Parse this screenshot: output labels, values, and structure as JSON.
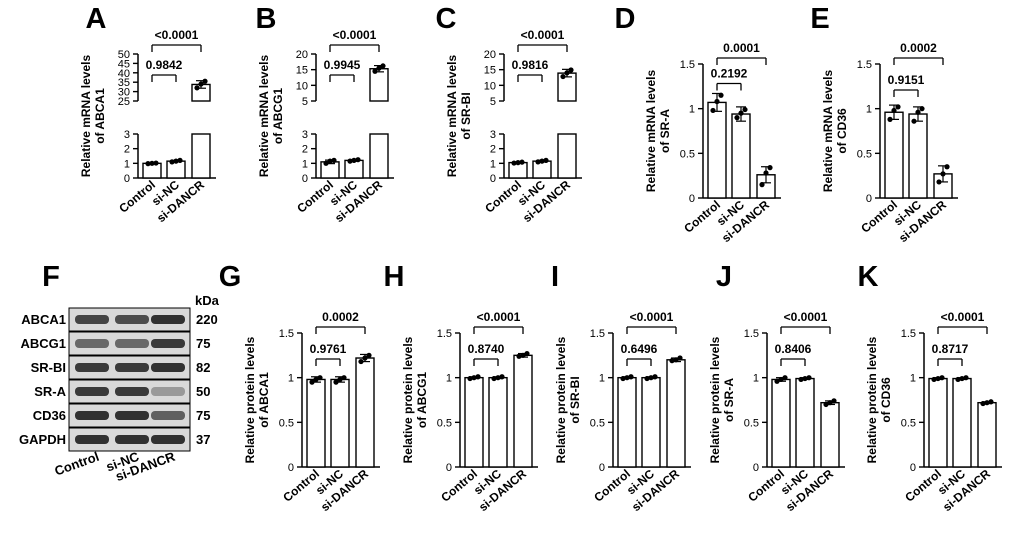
{
  "chart_data": [
    {
      "type": "bar",
      "panel": "A",
      "ylabel": [
        "Relative mRNA levels",
        "of ABCA1"
      ],
      "categories": [
        "Control",
        "si-NC",
        "si-DANCR"
      ],
      "values": [
        1.0,
        1.15,
        33.8
      ],
      "errors": [
        0.03,
        0.05,
        2.0
      ],
      "points": [
        [
          0.98,
          1.0,
          1.02
        ],
        [
          1.1,
          1.15,
          1.2
        ],
        [
          32.0,
          34.0,
          35.5
        ]
      ],
      "broken_axis": true,
      "ylower_ticks": [
        0,
        1,
        2,
        3
      ],
      "yupper_ticks": [
        25,
        30,
        35,
        40,
        45,
        50
      ],
      "comparisons": [
        {
          "from": 0,
          "to": 1,
          "label": "0.9842"
        },
        {
          "from": 0,
          "to": 2,
          "label": "<0.0001"
        }
      ]
    },
    {
      "type": "bar",
      "panel": "B",
      "ylabel": [
        "Relative mRNA levels",
        "of ABCG1"
      ],
      "categories": [
        "Control",
        "si-NC",
        "si-DANCR"
      ],
      "values": [
        1.1,
        1.2,
        15.3
      ],
      "errors": [
        0.12,
        0.06,
        1.0
      ],
      "points": [
        [
          1.0,
          1.15,
          1.2
        ],
        [
          1.15,
          1.2,
          1.25
        ],
        [
          14.5,
          15.5,
          16.2
        ]
      ],
      "broken_axis": true,
      "ylower_ticks": [
        0,
        1,
        2,
        3
      ],
      "yupper_ticks": [
        5,
        10,
        15,
        20
      ],
      "comparisons": [
        {
          "from": 0,
          "to": 1,
          "label": "0.9945"
        },
        {
          "from": 0,
          "to": 2,
          "label": "<0.0001"
        }
      ]
    },
    {
      "type": "bar",
      "panel": "C",
      "ylabel": [
        "Relative mRNA levels",
        "of SR-BI"
      ],
      "categories": [
        "Control",
        "si-NC",
        "si-DANCR"
      ],
      "values": [
        1.05,
        1.15,
        13.9
      ],
      "errors": [
        0.04,
        0.06,
        1.2
      ],
      "points": [
        [
          1.02,
          1.05,
          1.08
        ],
        [
          1.1,
          1.15,
          1.2
        ],
        [
          12.8,
          14.0,
          14.9
        ]
      ],
      "broken_axis": true,
      "ylower_ticks": [
        0,
        1,
        2,
        3
      ],
      "yupper_ticks": [
        5,
        10,
        15,
        20
      ],
      "comparisons": [
        {
          "from": 0,
          "to": 1,
          "label": "0.9816"
        },
        {
          "from": 0,
          "to": 2,
          "label": "<0.0001"
        }
      ]
    },
    {
      "type": "bar",
      "panel": "D",
      "ylabel": [
        "Relative mRNA levels",
        "of SR-A"
      ],
      "categories": [
        "Control",
        "si-NC",
        "si-DANCR"
      ],
      "values": [
        1.07,
        0.94,
        0.26
      ],
      "errors": [
        0.1,
        0.08,
        0.09
      ],
      "points": [
        [
          0.98,
          1.08,
          1.15
        ],
        [
          0.9,
          0.95,
          0.99
        ],
        [
          0.15,
          0.28,
          0.34
        ]
      ],
      "ylim": [
        0,
        1.5
      ],
      "yticks": [
        0.0,
        0.5,
        1.0,
        1.5
      ],
      "comparisons": [
        {
          "from": 0,
          "to": 1,
          "label": "0.2192"
        },
        {
          "from": 0,
          "to": 2,
          "label": "0.0001"
        }
      ]
    },
    {
      "type": "bar",
      "panel": "E",
      "ylabel": [
        "Relative mRNA levels",
        "of CD36"
      ],
      "categories": [
        "Control",
        "si-NC",
        "si-DANCR"
      ],
      "values": [
        0.96,
        0.94,
        0.27
      ],
      "errors": [
        0.08,
        0.08,
        0.09
      ],
      "points": [
        [
          0.88,
          0.98,
          1.02
        ],
        [
          0.86,
          0.96,
          1.0
        ],
        [
          0.18,
          0.27,
          0.35
        ]
      ],
      "ylim": [
        0,
        1.5
      ],
      "yticks": [
        0.0,
        0.5,
        1.0,
        1.5
      ],
      "comparisons": [
        {
          "from": 0,
          "to": 1,
          "label": "0.9151"
        },
        {
          "from": 0,
          "to": 2,
          "label": "0.0002"
        }
      ]
    },
    {
      "type": "bar",
      "panel": "G",
      "ylabel": [
        "Relative protein levels",
        "of ABCA1"
      ],
      "categories": [
        "Control",
        "si-NC",
        "si-DANCR"
      ],
      "values": [
        0.98,
        0.98,
        1.22
      ],
      "errors": [
        0.03,
        0.03,
        0.04
      ],
      "points": [
        [
          0.95,
          0.98,
          1.0
        ],
        [
          0.95,
          0.98,
          1.0
        ],
        [
          1.18,
          1.22,
          1.25
        ]
      ],
      "ylim": [
        0,
        1.5
      ],
      "yticks": [
        0.0,
        0.5,
        1.0,
        1.5
      ],
      "comparisons": [
        {
          "from": 0,
          "to": 1,
          "label": "0.9761"
        },
        {
          "from": 0,
          "to": 2,
          "label": "0.0002"
        }
      ]
    },
    {
      "type": "bar",
      "panel": "H",
      "ylabel": [
        "Relative protein levels",
        "of ABCG1"
      ],
      "categories": [
        "Control",
        "si-NC",
        "si-DANCR"
      ],
      "values": [
        1.0,
        1.0,
        1.25
      ],
      "errors": [
        0.01,
        0.01,
        0.02
      ],
      "points": [
        [
          0.99,
          1.0,
          1.01
        ],
        [
          0.99,
          1.0,
          1.01
        ],
        [
          1.24,
          1.25,
          1.27
        ]
      ],
      "ylim": [
        0,
        1.5
      ],
      "yticks": [
        0.0,
        0.5,
        1.0,
        1.5
      ],
      "comparisons": [
        {
          "from": 0,
          "to": 1,
          "label": "0.8740"
        },
        {
          "from": 0,
          "to": 2,
          "label": "<0.0001"
        }
      ]
    },
    {
      "type": "bar",
      "panel": "I",
      "ylabel": [
        "Relative protein levels",
        "of SR-BI"
      ],
      "categories": [
        "Control",
        "si-NC",
        "si-DANCR"
      ],
      "values": [
        1.0,
        1.0,
        1.2
      ],
      "errors": [
        0.01,
        0.01,
        0.02
      ],
      "points": [
        [
          0.99,
          1.0,
          1.01
        ],
        [
          0.99,
          1.0,
          1.01
        ],
        [
          1.19,
          1.2,
          1.22
        ]
      ],
      "ylim": [
        0,
        1.5
      ],
      "yticks": [
        0.0,
        0.5,
        1.0,
        1.5
      ],
      "comparisons": [
        {
          "from": 0,
          "to": 1,
          "label": "0.6496"
        },
        {
          "from": 0,
          "to": 2,
          "label": "<0.0001"
        }
      ]
    },
    {
      "type": "bar",
      "panel": "J",
      "ylabel": [
        "Relative protein levels",
        "of SR-A"
      ],
      "categories": [
        "Control",
        "si-NC",
        "si-DANCR"
      ],
      "values": [
        0.98,
        0.99,
        0.72
      ],
      "errors": [
        0.02,
        0.01,
        0.02
      ],
      "points": [
        [
          0.96,
          0.98,
          1.0
        ],
        [
          0.98,
          0.99,
          1.0
        ],
        [
          0.7,
          0.72,
          0.74
        ]
      ],
      "ylim": [
        0,
        1.5
      ],
      "yticks": [
        0.0,
        0.5,
        1.0,
        1.5
      ],
      "comparisons": [
        {
          "from": 0,
          "to": 1,
          "label": "0.8406"
        },
        {
          "from": 0,
          "to": 2,
          "label": "<0.0001"
        }
      ]
    },
    {
      "type": "bar",
      "panel": "K",
      "ylabel": [
        "Relative protein levels",
        "of CD36"
      ],
      "categories": [
        "Control",
        "si-NC",
        "si-DANCR"
      ],
      "values": [
        0.99,
        0.99,
        0.72
      ],
      "errors": [
        0.01,
        0.01,
        0.01
      ],
      "points": [
        [
          0.98,
          0.99,
          1.0
        ],
        [
          0.98,
          0.99,
          1.0
        ],
        [
          0.71,
          0.72,
          0.73
        ]
      ],
      "ylim": [
        0,
        1.5
      ],
      "yticks": [
        0.0,
        0.5,
        1.0,
        1.5
      ],
      "comparisons": [
        {
          "from": 0,
          "to": 1,
          "label": "0.8717"
        },
        {
          "from": 0,
          "to": 2,
          "label": "<0.0001"
        }
      ]
    }
  ],
  "western_blot": {
    "panel": "F",
    "unit_label": "kDa",
    "lanes": [
      "Control",
      "si-NC",
      "si-DANCR"
    ],
    "proteins": [
      {
        "name": "ABCA1",
        "kda": "220",
        "intensity": [
          0.75,
          0.7,
          0.85
        ]
      },
      {
        "name": "ABCG1",
        "kda": "75",
        "intensity": [
          0.55,
          0.55,
          0.8
        ]
      },
      {
        "name": "SR-BI",
        "kda": "82",
        "intensity": [
          0.8,
          0.8,
          0.85
        ]
      },
      {
        "name": "SR-A",
        "kda": "50",
        "intensity": [
          0.8,
          0.8,
          0.3
        ]
      },
      {
        "name": "CD36",
        "kda": "75",
        "intensity": [
          0.85,
          0.85,
          0.6
        ]
      },
      {
        "name": "GAPDH",
        "kda": "37",
        "intensity": [
          0.85,
          0.85,
          0.85
        ]
      }
    ]
  }
}
